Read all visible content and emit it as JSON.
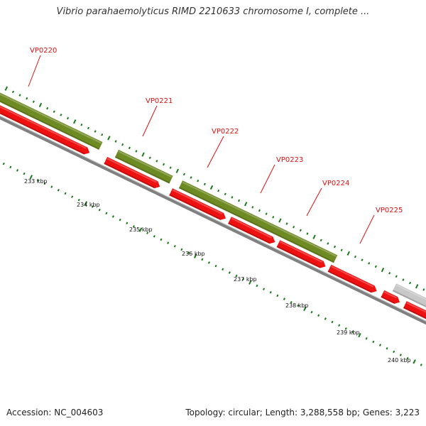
{
  "title": "Vibrio parahaemolyticus RIMD 2210633 chromosome I, complete ...",
  "footer": {
    "accession": "Accession: NC_004603",
    "summary": "Topology: circular; Length: 3,288,558 bp; Genes: 3,223"
  },
  "colors": {
    "cds": "#ee1111",
    "gene": "#6e8a23",
    "other": "#c8c8c8",
    "backbone": "#808080",
    "label": "#dd1111",
    "tick": "#1a7a1a"
  },
  "genes": [
    {
      "name": "VP0220"
    },
    {
      "name": "VP0221"
    },
    {
      "name": "VP0222"
    },
    {
      "name": "VP0223"
    },
    {
      "name": "VP0224"
    },
    {
      "name": "VP0225"
    }
  ],
  "scale": {
    "unit": "kbp",
    "labels": [
      "233 kbp",
      "234 kbp",
      "235 kbp",
      "236 kbp",
      "237 kbp",
      "238 kbp",
      "239 kbp",
      "240 kbp"
    ]
  }
}
